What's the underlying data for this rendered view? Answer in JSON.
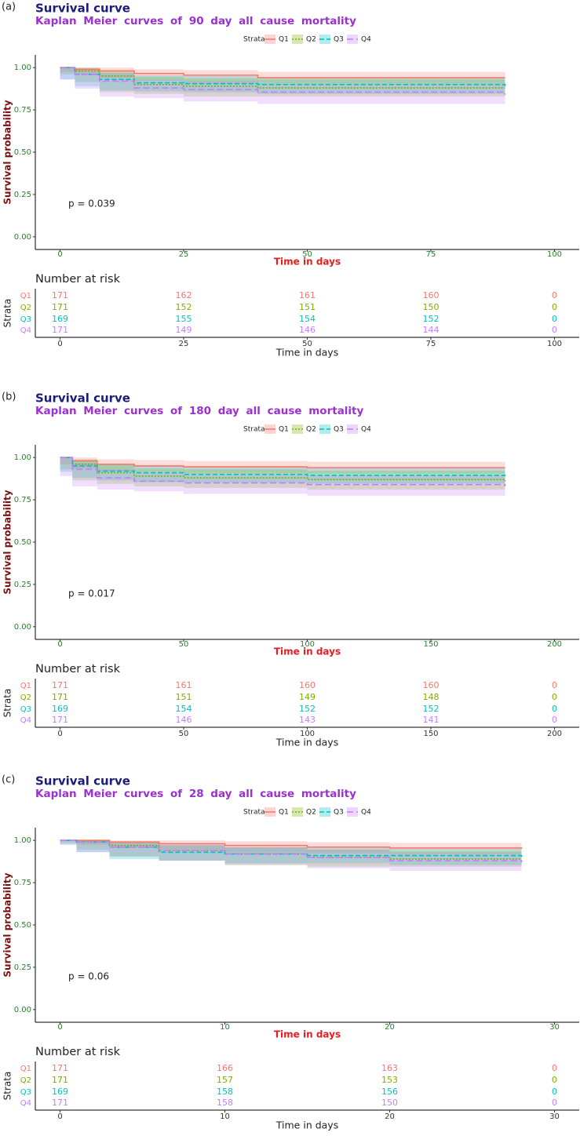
{
  "chart_data": [
    {
      "panel_label": "(a)",
      "type": "survival",
      "title": "Survival curve",
      "subtitle": "Kaplan Meier curves of 90 day all cause mortality",
      "legend_title": "Strata",
      "xlabel": "Time in days",
      "ylabel": "Survival probability",
      "annotation": "p = 0.039",
      "xlim": [
        -5,
        105
      ],
      "xticks": [
        0,
        25,
        50,
        75,
        100
      ],
      "ylim": [
        -0.075,
        1.075
      ],
      "yticks": [
        {
          "value": 0,
          "label": "0.00"
        },
        {
          "value": 0.25,
          "label": "0.25"
        },
        {
          "value": 0.5,
          "label": "0.50"
        },
        {
          "value": 0.75,
          "label": "0.75"
        },
        {
          "value": 1,
          "label": "1.00"
        }
      ],
      "x": [
        0,
        3,
        8,
        15,
        25,
        40,
        90
      ],
      "series": [
        {
          "name": "Q1",
          "color": "#F8766D",
          "values": [
            1,
            0.99,
            0.98,
            0.965,
            0.955,
            0.94,
            0.94
          ],
          "lower": [
            1,
            0.975,
            0.96,
            0.94,
            0.925,
            0.905,
            0.905
          ],
          "upper": [
            1,
            1,
            1,
            0.99,
            0.985,
            0.975,
            0.975
          ],
          "at_risk": [
            171,
            162,
            161,
            160,
            0
          ]
        },
        {
          "name": "Q2",
          "color": "#7CAE00",
          "values": [
            1,
            0.98,
            0.95,
            0.9,
            0.89,
            0.88,
            0.88
          ],
          "lower": [
            1,
            0.96,
            0.915,
            0.855,
            0.845,
            0.83,
            0.83
          ],
          "upper": [
            1,
            1,
            0.985,
            0.945,
            0.935,
            0.93,
            0.93
          ],
          "at_risk": [
            171,
            152,
            151,
            150,
            0
          ]
        },
        {
          "name": "Q3",
          "color": "#00BFC4",
          "values": [
            1,
            0.96,
            0.93,
            0.91,
            0.905,
            0.9,
            0.89
          ],
          "lower": [
            1,
            0.93,
            0.89,
            0.865,
            0.86,
            0.855,
            0.845
          ],
          "upper": [
            1,
            0.99,
            0.97,
            0.955,
            0.95,
            0.945,
            0.935
          ],
          "at_risk": [
            169,
            155,
            154,
            152,
            0
          ]
        },
        {
          "name": "Q4",
          "color": "#C77CFF",
          "values": [
            1,
            0.96,
            0.92,
            0.88,
            0.87,
            0.855,
            0.84
          ],
          "lower": [
            1,
            0.93,
            0.875,
            0.83,
            0.82,
            0.8,
            0.785
          ],
          "upper": [
            1,
            0.99,
            0.965,
            0.93,
            0.92,
            0.905,
            0.895
          ],
          "at_risk": [
            171,
            149,
            146,
            144,
            0
          ]
        }
      ],
      "risk_table": {
        "title": "Number at risk",
        "ylabel": "Strata",
        "xlabel": "Time in days"
      }
    },
    {
      "panel_label": "(b)",
      "type": "survival",
      "title": "Survival curve",
      "subtitle": "Kaplan Meier curves of 180 day all cause mortality",
      "legend_title": "Strata",
      "xlabel": "Time in days",
      "ylabel": "Survival probability",
      "annotation": "p = 0.017",
      "xlim": [
        -10,
        210
      ],
      "xticks": [
        0,
        50,
        100,
        150,
        200
      ],
      "ylim": [
        -0.075,
        1.075
      ],
      "yticks": [
        {
          "value": 0,
          "label": "0.00"
        },
        {
          "value": 0.25,
          "label": "0.25"
        },
        {
          "value": 0.5,
          "label": "0.50"
        },
        {
          "value": 0.75,
          "label": "0.75"
        },
        {
          "value": 1,
          "label": "1.00"
        }
      ],
      "x": [
        0,
        5,
        15,
        30,
        50,
        100,
        180
      ],
      "series": [
        {
          "name": "Q1",
          "color": "#F8766D",
          "values": [
            1,
            0.98,
            0.96,
            0.95,
            0.945,
            0.94,
            0.94
          ],
          "lower": [
            1,
            0.96,
            0.935,
            0.92,
            0.915,
            0.905,
            0.905
          ],
          "upper": [
            1,
            1,
            0.99,
            0.985,
            0.98,
            0.975,
            0.975
          ],
          "at_risk": [
            171,
            161,
            160,
            160,
            0
          ]
        },
        {
          "name": "Q2",
          "color": "#7CAE00",
          "values": [
            1,
            0.96,
            0.91,
            0.89,
            0.88,
            0.87,
            0.86
          ],
          "lower": [
            1,
            0.93,
            0.865,
            0.845,
            0.83,
            0.82,
            0.81
          ],
          "upper": [
            1,
            0.99,
            0.955,
            0.935,
            0.93,
            0.92,
            0.91
          ],
          "at_risk": [
            171,
            151,
            149,
            148,
            0
          ]
        },
        {
          "name": "Q3",
          "color": "#00BFC4",
          "values": [
            1,
            0.95,
            0.92,
            0.91,
            0.9,
            0.895,
            0.89
          ],
          "lower": [
            1,
            0.915,
            0.88,
            0.865,
            0.855,
            0.85,
            0.845
          ],
          "upper": [
            1,
            0.985,
            0.96,
            0.955,
            0.945,
            0.94,
            0.935
          ],
          "at_risk": [
            169,
            154,
            152,
            152,
            0
          ]
        },
        {
          "name": "Q4",
          "color": "#C77CFF",
          "values": [
            1,
            0.93,
            0.88,
            0.86,
            0.85,
            0.84,
            0.83
          ],
          "lower": [
            1,
            0.89,
            0.83,
            0.81,
            0.8,
            0.785,
            0.775
          ],
          "upper": [
            1,
            0.97,
            0.93,
            0.91,
            0.9,
            0.895,
            0.885
          ],
          "at_risk": [
            171,
            146,
            143,
            141,
            0
          ]
        }
      ],
      "risk_table": {
        "title": "Number at risk",
        "ylabel": "Strata",
        "xlabel": "Time in days"
      }
    },
    {
      "panel_label": "(c)",
      "type": "survival",
      "title": "Survival curve",
      "subtitle": "Kaplan Meier curves of 28 day all cause mortality",
      "legend_title": "Strata",
      "xlabel": "Time in days",
      "ylabel": "Survival probability",
      "annotation": "p = 0.06",
      "xlim": [
        -1.5,
        31.5
      ],
      "xticks": [
        0,
        10,
        20,
        30
      ],
      "ylim": [
        -0.075,
        1.075
      ],
      "yticks": [
        {
          "value": 0,
          "label": "0.00"
        },
        {
          "value": 0.25,
          "label": "0.25"
        },
        {
          "value": 0.5,
          "label": "0.50"
        },
        {
          "value": 0.75,
          "label": "0.75"
        },
        {
          "value": 1,
          "label": "1.00"
        }
      ],
      "x": [
        0,
        1,
        3,
        6,
        10,
        15,
        20,
        28
      ],
      "series": [
        {
          "name": "Q1",
          "color": "#F8766D",
          "values": [
            1,
            1,
            0.99,
            0.98,
            0.97,
            0.96,
            0.955,
            0.95
          ],
          "lower": [
            1,
            1,
            0.975,
            0.96,
            0.945,
            0.93,
            0.925,
            0.92
          ],
          "upper": [
            1,
            1,
            1,
            1,
            0.995,
            0.99,
            0.985,
            0.98
          ],
          "at_risk": [
            171,
            166,
            163,
            0
          ]
        },
        {
          "name": "Q2",
          "color": "#7CAE00",
          "values": [
            1,
            0.995,
            0.97,
            0.94,
            0.92,
            0.9,
            0.89,
            0.89
          ],
          "lower": [
            1,
            0.985,
            0.945,
            0.905,
            0.88,
            0.855,
            0.845,
            0.845
          ],
          "upper": [
            1,
            1,
            0.995,
            0.975,
            0.96,
            0.945,
            0.935,
            0.935
          ],
          "at_risk": [
            171,
            157,
            153,
            0
          ]
        },
        {
          "name": "Q3",
          "color": "#00BFC4",
          "values": [
            1,
            0.99,
            0.96,
            0.93,
            0.92,
            0.91,
            0.91,
            0.9
          ],
          "lower": [
            1,
            0.975,
            0.93,
            0.89,
            0.88,
            0.865,
            0.865,
            0.855
          ],
          "upper": [
            1,
            1,
            0.99,
            0.97,
            0.96,
            0.955,
            0.955,
            0.945
          ],
          "at_risk": [
            169,
            158,
            156,
            0
          ]
        },
        {
          "name": "Q4",
          "color": "#C77CFF",
          "values": [
            1,
            0.99,
            0.96,
            0.94,
            0.92,
            0.9,
            0.88,
            0.87
          ],
          "lower": [
            1,
            0.975,
            0.93,
            0.905,
            0.88,
            0.855,
            0.835,
            0.82
          ],
          "upper": [
            1,
            1,
            0.99,
            0.975,
            0.96,
            0.945,
            0.925,
            0.92
          ],
          "at_risk": [
            171,
            158,
            150,
            0
          ]
        }
      ],
      "risk_table": {
        "title": "Number at risk",
        "ylabel": "Strata",
        "xlabel": "Time in days"
      }
    }
  ]
}
